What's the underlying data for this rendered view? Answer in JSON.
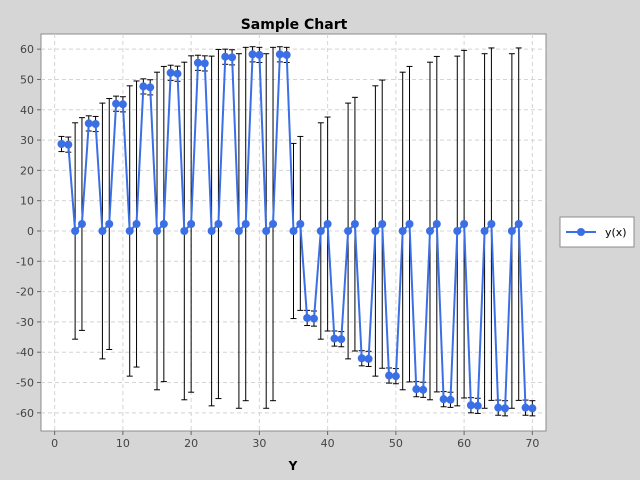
{
  "colors": {
    "background": "#d6d6d6",
    "plot_background": "#ffffff",
    "series": "#3b6fe6",
    "error_bar": "#000000",
    "grid": "#d4d4d4"
  },
  "chart_data": {
    "type": "line",
    "title": "Sample Chart",
    "xlabel": "Y",
    "ylabel": "",
    "xlim": [
      -2,
      72
    ],
    "ylim": [
      -66,
      65
    ],
    "xticks": [
      0,
      10,
      20,
      30,
      40,
      50,
      60,
      70
    ],
    "yticks": [
      -60,
      -50,
      -40,
      -30,
      -20,
      -10,
      0,
      10,
      20,
      30,
      40,
      50,
      60
    ],
    "grid": true,
    "legend_position": "right",
    "series": [
      {
        "name": "y(x)",
        "x": [
          1,
          2,
          3,
          4,
          5,
          6,
          7,
          8,
          9,
          10,
          11,
          12,
          13,
          14,
          15,
          16,
          17,
          18,
          19,
          20,
          21,
          22,
          23,
          24,
          25,
          26,
          27,
          28,
          29,
          30,
          31,
          32,
          33,
          34,
          35,
          36,
          37,
          38,
          39,
          40,
          41,
          42,
          43,
          44,
          45,
          46,
          47,
          48,
          49,
          50,
          51,
          52,
          53,
          54,
          55,
          56,
          57,
          58,
          59,
          60,
          61,
          62,
          63,
          64,
          65,
          66,
          67,
          68,
          69,
          70
        ],
        "y": [
          28.7,
          28.5,
          0,
          2.3,
          35.5,
          35.3,
          0,
          2.3,
          42,
          41.8,
          0,
          2.3,
          47.7,
          47.4,
          0,
          2.3,
          52.2,
          51.9,
          0,
          2.3,
          55.5,
          55.3,
          0,
          2.3,
          57.5,
          57.3,
          0,
          2.3,
          58.3,
          58.1,
          0,
          2.3,
          58.3,
          58.1,
          0,
          2.3,
          -28.7,
          -28.9,
          0,
          2.3,
          -35.5,
          -35.7,
          0,
          2.3,
          -42,
          -42.2,
          0,
          2.3,
          -47.7,
          -47.9,
          0,
          2.3,
          -52.2,
          -52.4,
          0,
          2.3,
          -55.5,
          -55.7,
          0,
          2.3,
          -57.5,
          -57.7,
          0,
          2.3,
          -58.3,
          -58.5,
          0,
          2.3,
          -58.3,
          -58.5
        ],
        "error_low": [
          26.2,
          26,
          -35.7,
          -32.8,
          33,
          32.8,
          -42.2,
          -39.1,
          39.5,
          39.3,
          -47.9,
          -44.9,
          45.2,
          44.9,
          -52.4,
          -49.7,
          49.7,
          49.4,
          -55.7,
          -53.2,
          53,
          52.8,
          -57.7,
          -55.3,
          55,
          54.8,
          -58.5,
          -56,
          55.8,
          55.6,
          -58.5,
          -56,
          55.8,
          55.6,
          -28.9,
          -26.2,
          -31.2,
          -31.4,
          -35.7,
          -33,
          -38,
          -38.2,
          -42.2,
          -39.6,
          -44.5,
          -44.7,
          -47.9,
          -45.3,
          -50.2,
          -50.4,
          -52.4,
          -49.8,
          -54.7,
          -54.9,
          -55.7,
          -53.1,
          -58,
          -58.2,
          -57.7,
          -55.1,
          -60,
          -60.2,
          -58.5,
          -55.9,
          -60.8,
          -61,
          -58.5,
          -55.9,
          -60.8,
          -61
        ],
        "error_high": [
          31.2,
          31,
          35.7,
          37.4,
          38,
          37.8,
          42.2,
          43.7,
          44.5,
          44.3,
          47.9,
          49.5,
          50.2,
          49.9,
          52.4,
          54.3,
          54.7,
          54.4,
          55.7,
          57.8,
          58,
          57.8,
          57.7,
          59.9,
          60,
          59.8,
          58.5,
          60.6,
          60.8,
          60.6,
          58.5,
          60.6,
          60.8,
          60.6,
          28.9,
          31.2,
          -26.2,
          -26.4,
          35.7,
          37.6,
          -33,
          -33.2,
          42.2,
          44.1,
          -39.5,
          -39.7,
          47.9,
          49.8,
          -45.2,
          -45.4,
          52.4,
          54.3,
          -49.7,
          -49.9,
          55.7,
          57.6,
          -53,
          -53.2,
          57.7,
          59.6,
          -55,
          -55.2,
          58.5,
          60.4,
          -55.8,
          -56,
          58.5,
          60.4,
          -55.8,
          -56
        ]
      }
    ]
  }
}
